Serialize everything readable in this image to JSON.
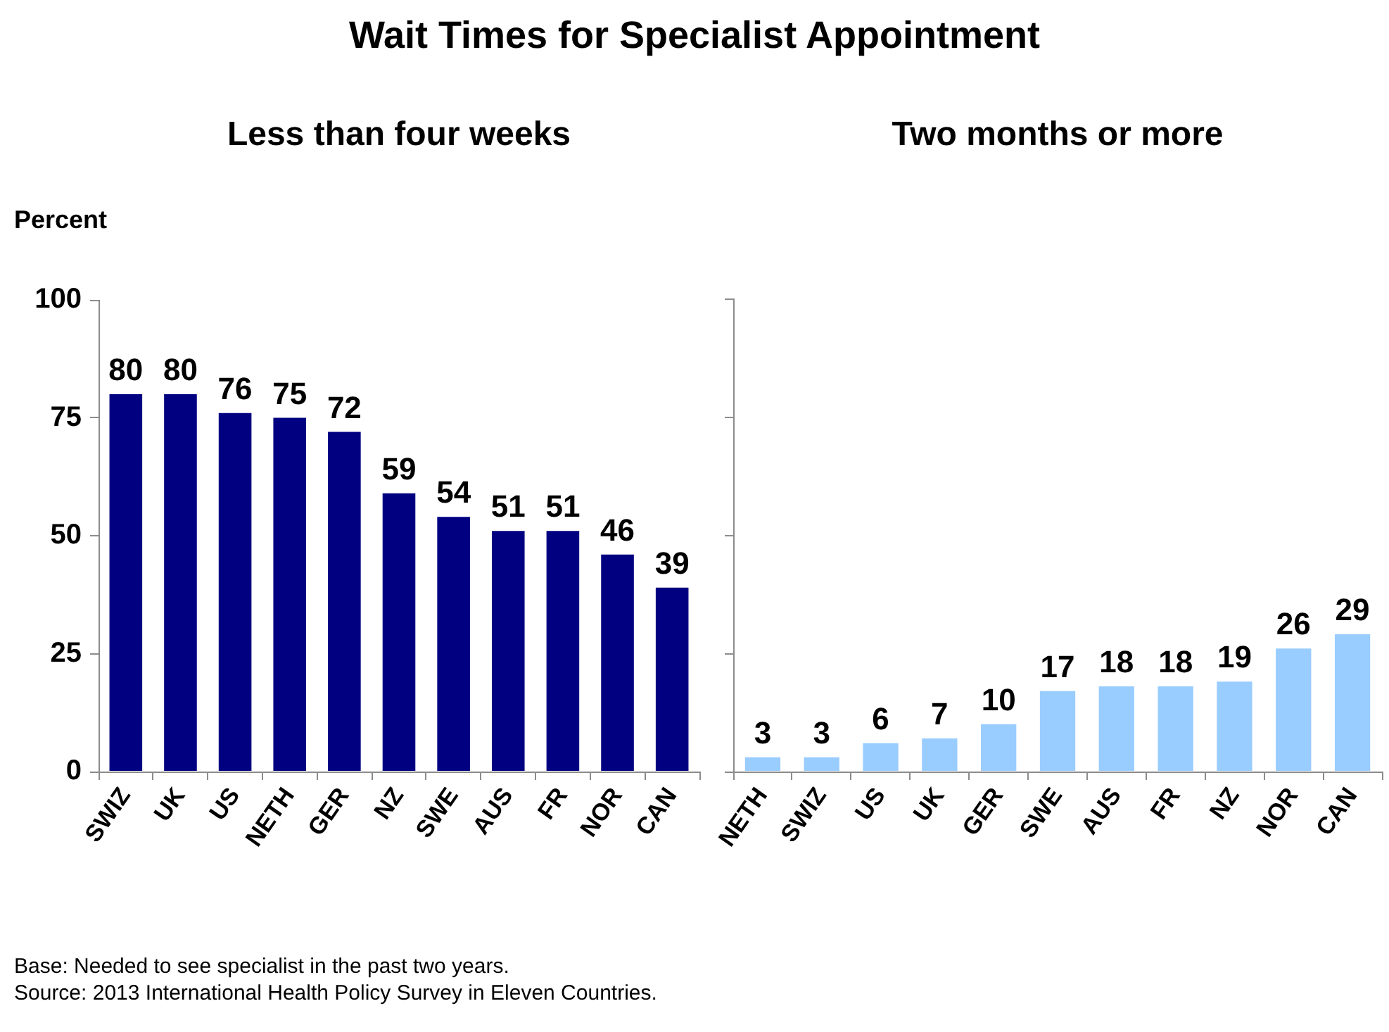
{
  "chart_data": [
    {
      "type": "bar",
      "title": "Wait Times for Specialist Appointment",
      "subtitle": "Less than four weeks",
      "ylabel": "Percent",
      "categories": [
        "SWIZ",
        "UK",
        "US",
        "NETH",
        "GER",
        "NZ",
        "SWE",
        "AUS",
        "FR",
        "NOR",
        "CAN"
      ],
      "values": [
        80,
        80,
        76,
        75,
        72,
        59,
        54,
        51,
        51,
        46,
        39
      ],
      "color": "#000080",
      "ylim": [
        0,
        100
      ],
      "yticks": [
        0,
        25,
        50,
        75,
        100
      ],
      "data_labels": true,
      "annotations": [
        "Base: Needed to see specialist in the past two years.",
        "Source: 2013 International Health Policy Survey in Eleven Countries."
      ]
    },
    {
      "type": "bar",
      "subtitle": "Two months or more",
      "categories": [
        "NETH",
        "SWIZ",
        "US",
        "UK",
        "GER",
        "SWE",
        "AUS",
        "FR",
        "NZ",
        "NOR",
        "CAN"
      ],
      "values": [
        3,
        3,
        6,
        7,
        10,
        17,
        18,
        18,
        19,
        26,
        29
      ],
      "color": "#99ccff",
      "ylim": [
        0,
        100
      ],
      "yticks": [
        0,
        25,
        50,
        75,
        100
      ],
      "tick_labels": "x",
      "data_labels": true
    }
  ]
}
